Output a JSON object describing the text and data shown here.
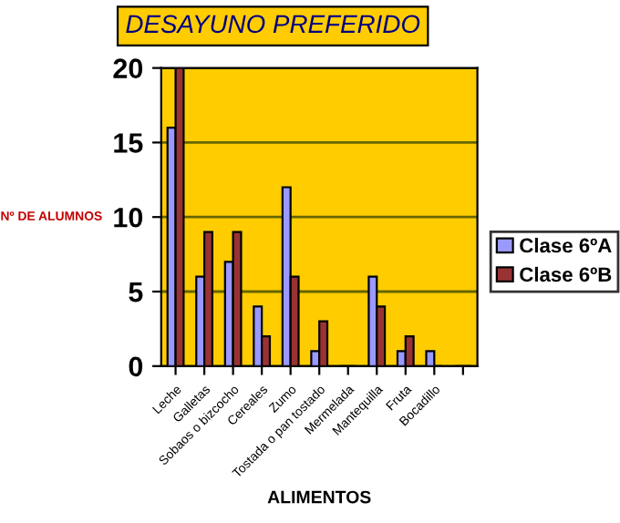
{
  "chart_data": {
    "type": "bar",
    "title": "DESAYUNO PREFERIDO",
    "xlabel": "ALIMENTOS",
    "ylabel": "Nº DE ALUMNOS",
    "categories": [
      "Leche",
      "Galletas",
      "Sobaos o bizcocho",
      "Cereales",
      "Zumo",
      "Tostada o pan tostado",
      "Mermelada",
      "Mantequilla",
      "Fruta",
      "Bocadillo",
      null
    ],
    "series": [
      {
        "name": "Clase 6ºA",
        "color": "#9999ff",
        "values": [
          16,
          6,
          7,
          4,
          12,
          1,
          0,
          6,
          1,
          1,
          0
        ]
      },
      {
        "name": "Clase 6ºB",
        "color": "#993333",
        "values": [
          20,
          9,
          9,
          2,
          6,
          3,
          0,
          4,
          2,
          0,
          0
        ]
      }
    ],
    "ylim": [
      0,
      20
    ],
    "yticks": [
      0,
      5,
      10,
      15,
      20
    ],
    "grid": "y",
    "legend": "right"
  }
}
